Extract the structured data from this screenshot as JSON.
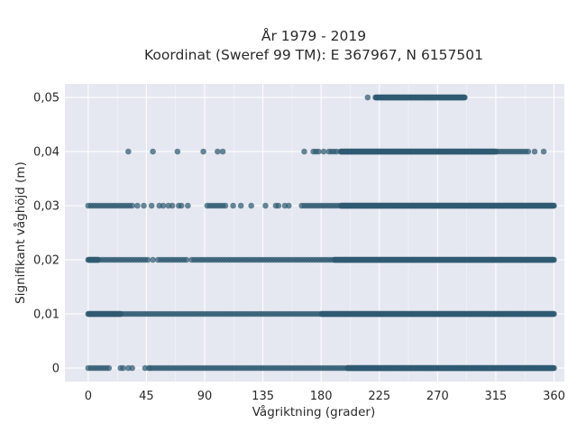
{
  "chart_data": {
    "type": "scatter",
    "title_line1": "År 1979 - 2019",
    "title_line2": "Koordinat (Sweref 99 TM): E 367967, N 6157501",
    "xlabel": "Vågriktning (grader)",
    "ylabel": "Signifikant våghöjd (m)",
    "xlim": [
      -18,
      368
    ],
    "ylim": [
      -0.0025,
      0.0525
    ],
    "x_ticks": [
      0,
      45,
      90,
      135,
      180,
      225,
      270,
      315,
      360
    ],
    "x_tick_labels": [
      "0",
      "45",
      "90",
      "135",
      "180",
      "225",
      "270",
      "315",
      "360"
    ],
    "y_ticks": [
      0,
      0.01,
      0.02,
      0.03,
      0.04,
      0.05
    ],
    "y_tick_labels": [
      "0",
      "0,01",
      "0,02",
      "0,03",
      "0,04",
      "0,05"
    ],
    "grid": true,
    "colors": {
      "point": "#2f5a72",
      "plot_bg": "#e6e8f1",
      "grid": "#ffffff"
    },
    "series": [
      {
        "y": 0,
        "dense_ranges": [
          [
            200,
            360
          ]
        ],
        "x": [
          0,
          2,
          4,
          6,
          8,
          10,
          12,
          14,
          16,
          25,
          27,
          31,
          34,
          44,
          47,
          48,
          50,
          52,
          54,
          56,
          58,
          60,
          62,
          64,
          66,
          68,
          70,
          72,
          74,
          76,
          78,
          80,
          82,
          84,
          86,
          88,
          90,
          92,
          94,
          96,
          98,
          100,
          102,
          104,
          106,
          108,
          110,
          112,
          114,
          116,
          118,
          120,
          122,
          124,
          126,
          128,
          130,
          132,
          134,
          136,
          138,
          140,
          142,
          144,
          146,
          148,
          150,
          152,
          154,
          156,
          158,
          160,
          162,
          164,
          166,
          168,
          170,
          172,
          174,
          176,
          178,
          180,
          182,
          184,
          186,
          188,
          190,
          192,
          194,
          196,
          198
        ]
      },
      {
        "y": 0.01,
        "dense_ranges": [
          [
            0,
            25
          ],
          [
            180,
            360
          ]
        ],
        "x": [
          26,
          28,
          30,
          32,
          34,
          36,
          38,
          40,
          42,
          44,
          46,
          48,
          50,
          52,
          54,
          56,
          58,
          60,
          62,
          64,
          66,
          68,
          70,
          72,
          74,
          76,
          78,
          80,
          82,
          84,
          86,
          88,
          90,
          92,
          94,
          96,
          98,
          100,
          102,
          104,
          106,
          108,
          110,
          112,
          114,
          116,
          118,
          120,
          122,
          124,
          126,
          128,
          130,
          132,
          134,
          136,
          138,
          140,
          142,
          144,
          146,
          148,
          150,
          152,
          154,
          156,
          158,
          160,
          162,
          164,
          166,
          168,
          170,
          172,
          174,
          176,
          178
        ]
      },
      {
        "y": 0.02,
        "dense_ranges": [
          [
            0,
            8
          ],
          [
            190,
            360
          ]
        ],
        "x": [
          10,
          12,
          14,
          16,
          18,
          20,
          22,
          24,
          26,
          28,
          30,
          32,
          34,
          36,
          38,
          40,
          42,
          44,
          46,
          50,
          54,
          56,
          58,
          60,
          62,
          64,
          66,
          68,
          70,
          72,
          74,
          76,
          80,
          82,
          84,
          86,
          88,
          90,
          92,
          94,
          96,
          98,
          100,
          102,
          104,
          106,
          108,
          110,
          112,
          114,
          116,
          118,
          120,
          122,
          124,
          126,
          128,
          130,
          132,
          134,
          136,
          138,
          140,
          142,
          144,
          146,
          148,
          150,
          152,
          154,
          156,
          158,
          160,
          162,
          164,
          166,
          168,
          170,
          172,
          174,
          176,
          178,
          180,
          182,
          184,
          186,
          188
        ]
      },
      {
        "y": 0.03,
        "dense_ranges": [
          [
            195,
            360
          ]
        ],
        "x": [
          0,
          2,
          4,
          6,
          8,
          10,
          12,
          14,
          16,
          18,
          20,
          22,
          24,
          26,
          28,
          30,
          32,
          34,
          38,
          43,
          49,
          55,
          58,
          62,
          65,
          70,
          72,
          77,
          92,
          94,
          96,
          98,
          100,
          102,
          104,
          106,
          112,
          118,
          126,
          137,
          145,
          147,
          152,
          155,
          165,
          167,
          169,
          171,
          173,
          175,
          177,
          179,
          181,
          183,
          185,
          187,
          189,
          191,
          193
        ]
      },
      {
        "y": 0.04,
        "dense_ranges": [
          [
            195,
            315
          ]
        ],
        "x": [
          31,
          50,
          69,
          89,
          100,
          104,
          167,
          174,
          176,
          178,
          182,
          186,
          188,
          190,
          192,
          316,
          318,
          320,
          322,
          324,
          326,
          328,
          330,
          332,
          334,
          336,
          338,
          340,
          345,
          352
        ]
      },
      {
        "y": 0.05,
        "dense_ranges": [
          [
            222,
            291
          ]
        ],
        "x": [
          216
        ]
      }
    ]
  }
}
